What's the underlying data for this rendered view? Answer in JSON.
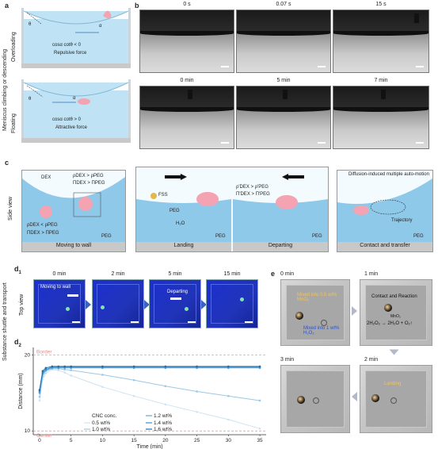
{
  "panels": {
    "a": "a",
    "b": "b",
    "c": "c",
    "d1": "d",
    "d1_sub": "1",
    "d2": "d",
    "d2_sub": "2",
    "e": "e"
  },
  "side_labels": {
    "meniscus": "Meniscus climbing or descending",
    "overloading": "Overloading",
    "floating": "Floating",
    "side_view": "Side view",
    "substance": "Substance shuttle and transport",
    "top_view": "Top view"
  },
  "panel_a": {
    "top": {
      "theta": "θ",
      "alpha": "α",
      "formula": "cosα cotθ < 0",
      "force": "Repulsive force"
    },
    "bottom": {
      "theta": "θ",
      "alpha": "α",
      "formula": "cosα cotθ > 0",
      "force": "Attractive force"
    }
  },
  "panel_b": {
    "top_times": [
      "0 s",
      "0.07 s",
      "15 s"
    ],
    "bottom_times": [
      "0 min",
      "5 min",
      "7 min"
    ]
  },
  "panel_c": {
    "dex": "DEX",
    "ineq1": "ρ",
    "ineq1_full": "ρDEX > ρPEG",
    "ineq2_full": "ΠDEX > ΠPEG",
    "ineq3_full": "ρDEX < ρPEG",
    "ineq4_full": "ΠDEX > ΠPEG",
    "fss": "FSS",
    "peg_label": "PEG",
    "h2o": "H₂O",
    "ineq5_full": "ρ'DEX > ρ'PEG",
    "ineq6_full": "Π'DEX > Π'PEG",
    "diffusion": "Diffusion-induced multiple auto-motion",
    "trajectory": "Trajectory",
    "peg": [
      "PEG",
      "PEG",
      "PEG",
      "PEG"
    ],
    "steps": [
      "Moving to wall",
      "Landing",
      "Departing",
      "Contact and transfer"
    ]
  },
  "panel_d1": {
    "times": [
      "0 min",
      "2 min",
      "5 min",
      "15 min"
    ],
    "moving": "Moving to wall",
    "departing": "Departing"
  },
  "panel_e": {
    "times": [
      "0 min",
      "1 min",
      "3 min",
      "2 min"
    ],
    "mixed1": "Mixed into 0.5 wt% MnO₂",
    "mixed2": "Mixed into 1 wt% H₂O₂",
    "contact": "Contact and Reaction",
    "reaction": "2H₂O₂ → 2H₂O + O₂↑",
    "catalyst": "MnO₂",
    "landing": "Landing"
  },
  "chart_data": {
    "type": "line",
    "title": "",
    "xlabel": "Time (min)",
    "ylabel": "Distance (mm)",
    "xlim": [
      -1,
      36
    ],
    "ylim": [
      9.5,
      21
    ],
    "xticks": [
      0,
      5,
      10,
      15,
      20,
      25,
      30,
      35
    ],
    "yticks": [
      10,
      20
    ],
    "reference_lines": [
      {
        "label": "Border",
        "y": 20,
        "color": "#e98c8c"
      },
      {
        "label": "Center",
        "y": 10,
        "color": "#e98c8c"
      }
    ],
    "legend_title": "CNC conc.",
    "series": [
      {
        "name": "0.5 wt%",
        "color": "#cfe3f2",
        "x": [
          0,
          0.5,
          1,
          2,
          3,
          4,
          5,
          10,
          15,
          20,
          25,
          30,
          35
        ],
        "y": [
          14.0,
          16.8,
          17.6,
          18.1,
          18.0,
          17.7,
          17.3,
          15.8,
          14.6,
          13.5,
          12.5,
          11.5,
          10.3
        ]
      },
      {
        "name": "1.0 wt%",
        "color": "#9cc8e6",
        "x": [
          0,
          0.5,
          1,
          2,
          3,
          4,
          5,
          10,
          15,
          20,
          25,
          30,
          35
        ],
        "y": [
          14.5,
          17.2,
          17.9,
          18.2,
          18.2,
          18.1,
          18.0,
          17.4,
          16.7,
          15.9,
          15.2,
          14.6,
          14.0
        ]
      },
      {
        "name": "1.2 wt%",
        "color": "#5ea8d8",
        "x": [
          0,
          0.5,
          1,
          2,
          3,
          4,
          5,
          10,
          15,
          20,
          25,
          30,
          35
        ],
        "y": [
          15.0,
          17.5,
          18.0,
          18.3,
          18.3,
          18.3,
          18.3,
          18.3,
          18.3,
          18.3,
          18.3,
          18.3,
          18.3
        ]
      },
      {
        "name": "1.4 wt%",
        "color": "#3b8cc9",
        "x": [
          0,
          0.5,
          1,
          2,
          3,
          4,
          5,
          10,
          15,
          20,
          25,
          30,
          35
        ],
        "y": [
          15.2,
          17.7,
          18.1,
          18.4,
          18.4,
          18.4,
          18.4,
          18.4,
          18.4,
          18.4,
          18.4,
          18.4,
          18.4
        ]
      },
      {
        "name": "1.6 wt%",
        "color": "#1e6fae",
        "x": [
          0,
          0.5,
          1,
          2,
          3,
          4,
          5,
          10,
          15,
          20,
          25,
          30,
          35
        ],
        "y": [
          15.4,
          17.9,
          18.3,
          18.5,
          18.5,
          18.5,
          18.5,
          18.5,
          18.5,
          18.5,
          18.5,
          18.5,
          18.5
        ]
      }
    ]
  }
}
